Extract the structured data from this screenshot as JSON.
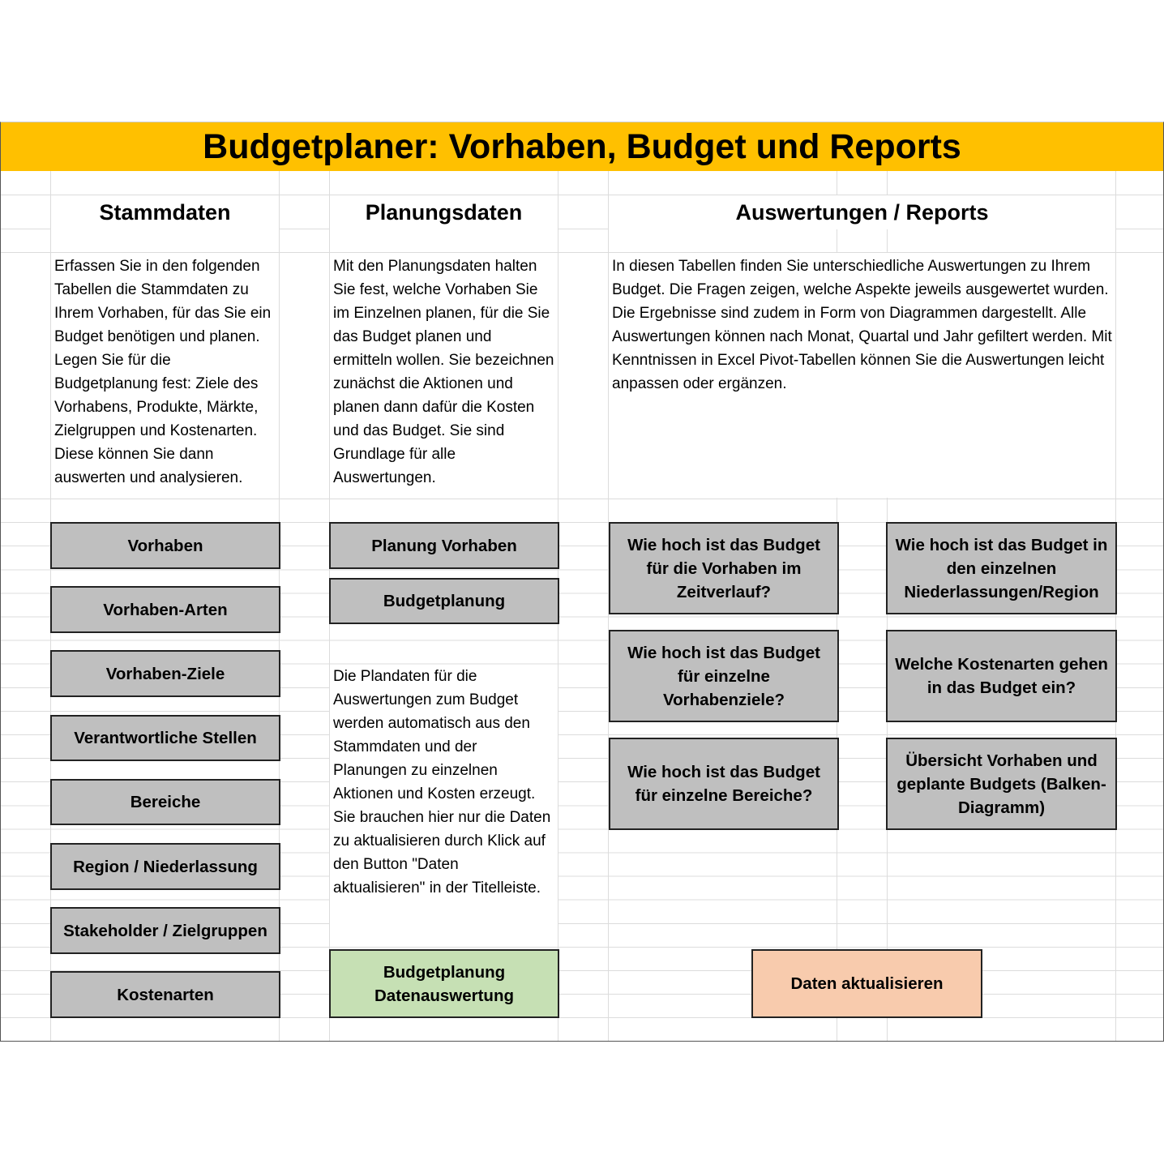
{
  "title": "Budgetplaner: Vorhaben, Budget und Reports",
  "colors": {
    "title_bg": "#ffc000",
    "button_gray": "#bfbfbf",
    "button_green": "#c6e0b4",
    "button_orange": "#f8cbad"
  },
  "stammdaten": {
    "heading": "Stammdaten",
    "text": "Erfassen Sie in den folgenden Tabellen die Stammdaten zu Ihrem Vorhaben, für das Sie ein Budget benötigen und planen. Legen Sie für die Budgetplanung fest: Ziele des Vorhabens, Produkte, Märkte, Zielgruppen und Kostenarten. Diese können Sie dann auswerten und analysieren.",
    "buttons": [
      "Vorhaben",
      "Vorhaben-Arten",
      "Vorhaben-Ziele",
      "Verantwortliche Stellen",
      "Bereiche",
      "Region / Niederlassung",
      "Stakeholder / Zielgruppen",
      "Kostenarten"
    ]
  },
  "planungsdaten": {
    "heading": "Planungsdaten",
    "text": "Mit den Planungsdaten halten Sie fest, welche Vorhaben Sie im Einzelnen planen, für die Sie das Budget planen und ermitteln wollen. Sie bezeichnen zunächst die Aktionen und planen dann dafür die Kosten und das Budget. Sie sind Grundlage für alle Auswertungen.",
    "buttons": [
      "Planung Vorhaben",
      "Budgetplanung"
    ],
    "text2": "Die Plandaten für die Auswertungen zum Budget werden automatisch aus den Stammdaten und der Planungen zu einzelnen Aktionen und Kosten erzeugt. Sie brauchen hier nur die Daten zu aktualisieren durch Klick auf den Button \"Daten aktualisieren\" in der Titelleiste.",
    "green_button": "Budgetplanung Datenauswertung"
  },
  "reports": {
    "heading": "Auswertungen / Reports",
    "text": "In diesen Tabellen finden Sie unterschiedliche Auswertungen zu Ihrem Budget. Die Fragen zeigen, welche Aspekte jeweils ausgewertet wurden. Die Ergebnisse sind zudem in Form von Diagrammen dargestellt. Alle Auswertungen können nach Monat, Quartal und Jahr gefiltert werden. Mit Kenntnissen in Excel Pivot-Tabellen können Sie die Auswertungen leicht anpassen oder ergänzen.",
    "buttons": [
      "Wie hoch ist das Budget für die Vorhaben im Zeitverlauf?",
      "Wie hoch ist das Budget in den einzelnen Niederlassungen/Region",
      "Wie hoch ist das Budget für einzelne Vorhabenziele?",
      "Welche Kostenarten gehen in das Budget ein?",
      "Wie hoch ist das Budget für einzelne Bereiche?",
      "Übersicht Vorhaben und geplante Budgets (Balken-Diagramm)"
    ],
    "refresh_button": "Daten aktualisieren"
  }
}
